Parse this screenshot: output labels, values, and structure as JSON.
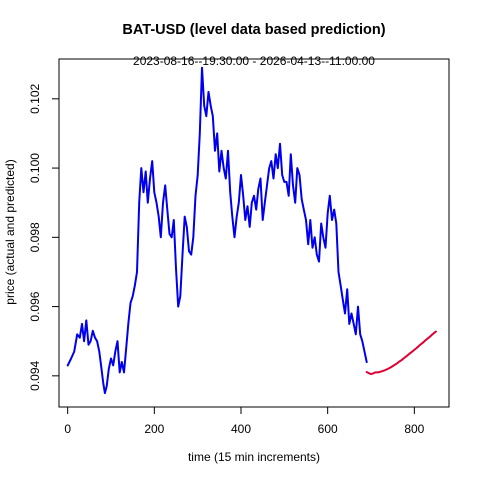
{
  "chart_data": {
    "type": "line",
    "title": "BAT-USD (level data based prediction)",
    "subtitle": "2023-08-16--19:30:00  -  2026-04-13--11:00:00",
    "xlabel": "time (15 min increments)",
    "ylabel": "price (actual and predicted)",
    "xlim": [
      -20,
      880
    ],
    "ylim": [
      0.0931,
      0.10315
    ],
    "xticks": [
      0,
      200,
      400,
      600,
      800
    ],
    "xtick_labels": [
      "0",
      "200",
      "400",
      "600",
      "800"
    ],
    "yticks": [
      0.094,
      0.096,
      0.098,
      0.1,
      0.102
    ],
    "ytick_labels": [
      "0.094",
      "0.096",
      "0.098",
      "0.100",
      "0.102"
    ],
    "grid": false,
    "series": [
      {
        "color": "#0000ee",
        "x": [
          0,
          8,
          15,
          22,
          28,
          33,
          38,
          43,
          48,
          53,
          58,
          63,
          68,
          73,
          78,
          82,
          86,
          90,
          95,
          100,
          105,
          110,
          115,
          120,
          125,
          130,
          135,
          140,
          145,
          150,
          155,
          160,
          165,
          170,
          175,
          180,
          185,
          190,
          195,
          200,
          205,
          210,
          215,
          220,
          225,
          230,
          235,
          240,
          245,
          250,
          255,
          260,
          265,
          270,
          275,
          280,
          285,
          290,
          295,
          300,
          305,
          310,
          315,
          320,
          325,
          330,
          335,
          340,
          345,
          350,
          355,
          360,
          365,
          370,
          375,
          380,
          385,
          390,
          395,
          400,
          405,
          410,
          415,
          420,
          425,
          430,
          435,
          440,
          445,
          450,
          455,
          460,
          465,
          470,
          475,
          480,
          485,
          490,
          495,
          500,
          505,
          510,
          515,
          520,
          525,
          530,
          535,
          540,
          545,
          550,
          555,
          560,
          565,
          570,
          575,
          580,
          585,
          590,
          595,
          600,
          605,
          610,
          615,
          620,
          625,
          630,
          635,
          640,
          645,
          650,
          655,
          660,
          665,
          670,
          675,
          680,
          685,
          690
        ],
        "y": [
          0.0943,
          0.0945,
          0.0947,
          0.0952,
          0.0951,
          0.0955,
          0.095,
          0.0956,
          0.0949,
          0.095,
          0.0953,
          0.0951,
          0.095,
          0.0947,
          0.0942,
          0.0938,
          0.0935,
          0.0937,
          0.0942,
          0.0945,
          0.0943,
          0.0947,
          0.095,
          0.0941,
          0.0944,
          0.0941,
          0.0948,
          0.0955,
          0.0961,
          0.0963,
          0.0966,
          0.097,
          0.099,
          0.1,
          0.0993,
          0.0999,
          0.099,
          0.0997,
          0.1002,
          0.0993,
          0.099,
          0.0986,
          0.098,
          0.099,
          0.0995,
          0.0988,
          0.0981,
          0.098,
          0.0985,
          0.0971,
          0.096,
          0.0963,
          0.0975,
          0.0986,
          0.0983,
          0.0976,
          0.0975,
          0.098,
          0.0992,
          0.0998,
          0.101,
          0.1029,
          0.1018,
          0.1015,
          0.1022,
          0.1018,
          0.1015,
          0.1005,
          0.101,
          0.0999,
          0.1005,
          0.1,
          0.0997,
          0.1005,
          0.0993,
          0.0986,
          0.098,
          0.0986,
          0.099,
          0.0998,
          0.0992,
          0.0985,
          0.0989,
          0.0983,
          0.099,
          0.0992,
          0.0988,
          0.0994,
          0.0997,
          0.0985,
          0.099,
          0.0995,
          0.1,
          0.1002,
          0.0997,
          0.1004,
          0.1,
          0.1007,
          0.0998,
          0.0996,
          0.0996,
          0.0992,
          0.1004,
          0.0995,
          0.099,
          0.1,
          0.0998,
          0.0991,
          0.0988,
          0.0985,
          0.0978,
          0.0985,
          0.0977,
          0.098,
          0.0975,
          0.0973,
          0.0984,
          0.098,
          0.0977,
          0.0987,
          0.0992,
          0.0985,
          0.0988,
          0.0984,
          0.097,
          0.0966,
          0.0962,
          0.0958,
          0.0965,
          0.0955,
          0.0958,
          0.0955,
          0.0952,
          0.096,
          0.0952,
          0.095,
          0.0947,
          0.0944
        ]
      },
      {
        "color": "#dd0033",
        "x": [
          690,
          695,
          700,
          705,
          710,
          715,
          720,
          725,
          730,
          735,
          740,
          745,
          750,
          755,
          760,
          765,
          770,
          775,
          780,
          785,
          790,
          795,
          800,
          805,
          810,
          815,
          820,
          825,
          830,
          835,
          840,
          845,
          850
        ],
        "y": [
          0.09411,
          0.09408,
          0.09405,
          0.09407,
          0.0941,
          0.0941,
          0.09411,
          0.09413,
          0.09415,
          0.09418,
          0.09421,
          0.09424,
          0.09428,
          0.09432,
          0.09436,
          0.09441,
          0.09445,
          0.0945,
          0.09455,
          0.0946,
          0.09465,
          0.0947,
          0.09475,
          0.0948,
          0.09486,
          0.09491,
          0.09496,
          0.09502,
          0.09507,
          0.09512,
          0.09518,
          0.09523,
          0.09528
        ]
      }
    ]
  }
}
